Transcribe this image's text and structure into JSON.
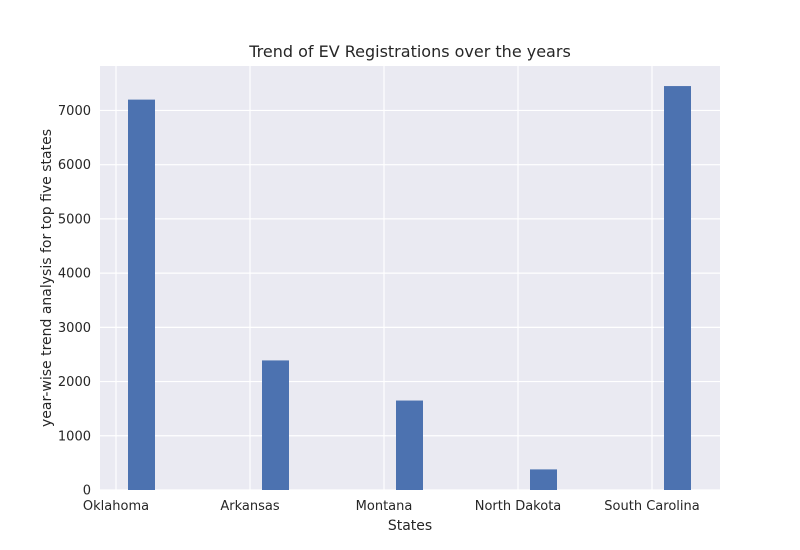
{
  "chart_data": {
    "type": "bar",
    "title": "Trend of EV Registrations over the years",
    "xlabel": "States",
    "ylabel": "year-wise trend analysis for top five states",
    "categories": [
      "Oklahoma",
      "Arkansas",
      "Montana",
      "North Dakota",
      "South Carolina"
    ],
    "values": [
      7200,
      2390,
      1650,
      380,
      7450
    ],
    "ylim": [
      0,
      7820
    ],
    "yticks": [
      0,
      1000,
      2000,
      3000,
      4000,
      5000,
      6000,
      7000
    ],
    "grid": true,
    "colors": {
      "bar": "#4c72b0",
      "plot_bg": "#eaeaf2",
      "grid": "#ffffff"
    }
  }
}
